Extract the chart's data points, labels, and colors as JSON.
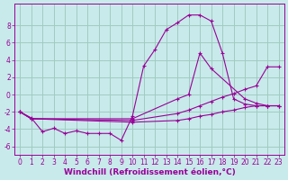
{
  "bg_color": "#c8eaea",
  "line_color": "#990099",
  "grid_color": "#a0ccc0",
  "xlabel": "Windchill (Refroidissement éolien,°C)",
  "xlabel_fontsize": 6.5,
  "tick_fontsize": 5.5,
  "xlim": [
    -0.5,
    23.5
  ],
  "ylim": [
    -7,
    10.5
  ],
  "yticks": [
    -6,
    -4,
    -2,
    0,
    2,
    4,
    6,
    8
  ],
  "xticks": [
    0,
    1,
    2,
    3,
    4,
    5,
    6,
    7,
    8,
    9,
    10,
    11,
    12,
    13,
    14,
    15,
    16,
    17,
    18,
    19,
    20,
    21,
    22,
    23
  ],
  "series": [
    {
      "x": [
        0,
        1,
        2,
        3,
        4,
        5,
        6,
        7,
        8,
        9,
        10,
        11,
        12,
        13,
        14,
        15,
        16,
        17,
        18,
        19,
        20,
        21,
        22,
        23
      ],
      "y": [
        -2.0,
        -2.7,
        -4.3,
        -3.9,
        -4.5,
        -4.2,
        -4.5,
        -4.5,
        -4.5,
        -5.3,
        -2.5,
        3.3,
        5.2,
        7.5,
        8.3,
        9.2,
        9.2,
        8.5,
        4.8,
        -0.5,
        -1.1,
        -1.3,
        -1.3,
        -1.3
      ]
    },
    {
      "x": [
        0,
        1,
        10,
        14,
        15,
        16,
        17,
        20,
        21,
        22,
        23
      ],
      "y": [
        -2.0,
        -2.8,
        -2.8,
        -0.5,
        0.0,
        4.8,
        3.0,
        -0.5,
        -1.0,
        -1.3,
        -1.3
      ]
    },
    {
      "x": [
        0,
        1,
        10,
        14,
        15,
        16,
        17,
        18,
        19,
        20,
        21,
        22,
        23
      ],
      "y": [
        -2.0,
        -2.8,
        -3.0,
        -2.2,
        -1.8,
        -1.3,
        -0.8,
        -0.3,
        0.1,
        0.6,
        1.0,
        3.2,
        3.2
      ]
    },
    {
      "x": [
        0,
        1,
        10,
        14,
        15,
        16,
        17,
        18,
        19,
        20,
        21,
        22,
        23
      ],
      "y": [
        -2.0,
        -2.8,
        -3.2,
        -3.0,
        -2.8,
        -2.5,
        -2.3,
        -2.0,
        -1.8,
        -1.5,
        -1.3,
        -1.3,
        -1.3
      ]
    }
  ]
}
